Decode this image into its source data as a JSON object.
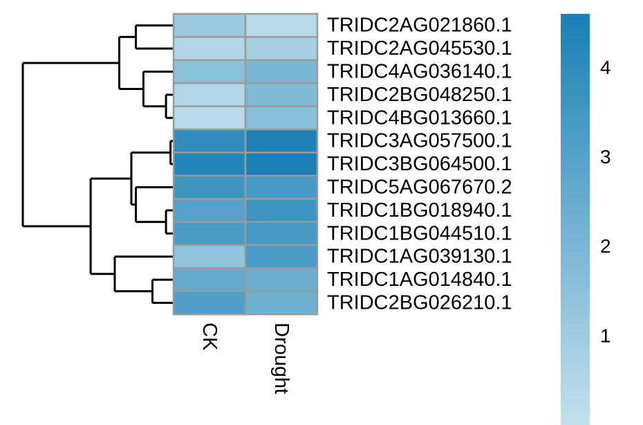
{
  "chart_data": {
    "type": "heatmap",
    "columns": [
      "CK",
      "Drought"
    ],
    "rows": [
      "TRIDC2AG021860.1",
      "TRIDC2AG045530.1",
      "TRIDC4AG036140.1",
      "TRIDC2BG048250.1",
      "TRIDC4BG013660.1",
      "TRIDC3AG057500.1",
      "TRIDC3BG064500.1",
      "TRIDC5AG067670.2",
      "TRIDC1BG018940.1",
      "TRIDC1BG044510.1",
      "TRIDC1AG039130.1",
      "TRIDC1AG014840.1",
      "TRIDC2BG026210.1"
    ],
    "values": [
      [
        1.1,
        0.3
      ],
      [
        0.5,
        0.8
      ],
      [
        1.5,
        2.0
      ],
      [
        0.5,
        1.8
      ],
      [
        0.3,
        1.6
      ],
      [
        4.0,
        4.5
      ],
      [
        4.3,
        4.6
      ],
      [
        3.6,
        3.4
      ],
      [
        3.0,
        3.6
      ],
      [
        3.3,
        3.4
      ],
      [
        1.4,
        3.3
      ],
      [
        2.6,
        2.4
      ],
      [
        3.1,
        2.3
      ]
    ],
    "colorscale": {
      "min": 0,
      "max": 4.6,
      "low_color": "#c3e0ec",
      "high_color": "#1a80b6",
      "ticks": [
        1,
        2,
        3,
        4
      ]
    },
    "row_dendrogram": {
      "root": {
        "children": [
          {
            "children": [
              {
                "children": [
                  {
                    "leaf": 0
                  },
                  {
                    "leaf": 1
                  }
                ],
                "height": 0.25
              },
              {
                "children": [
                  {
                    "leaf": 2
                  },
                  {
                    "children": [
                      {
                        "leaf": 3
                      },
                      {
                        "leaf": 4
                      }
                    ],
                    "height": 0.05
                  }
                ],
                "height": 0.2
              }
            ],
            "height": 0.36
          },
          {
            "children": [
              {
                "children": [
                  {
                    "children": [
                      {
                        "leaf": 5
                      },
                      {
                        "leaf": 6
                      }
                    ],
                    "height": 0.02
                  },
                  {
                    "children": [
                      {
                        "leaf": 7
                      },
                      {
                        "children": [
                          {
                            "leaf": 8
                          },
                          {
                            "leaf": 9
                          }
                        ],
                        "height": 0.05
                      }
                    ],
                    "height": 0.25
                  }
                ],
                "height": 0.28
              },
              {
                "children": [
                  {
                    "leaf": 10
                  },
                  {
                    "children": [
                      {
                        "leaf": 11
                      },
                      {
                        "leaf": 12
                      }
                    ],
                    "height": 0.14
                  }
                ],
                "height": 0.39
              }
            ],
            "height": 0.55
          }
        ],
        "height": 1.0
      }
    },
    "cell_border_color": "#9a9a9a"
  }
}
